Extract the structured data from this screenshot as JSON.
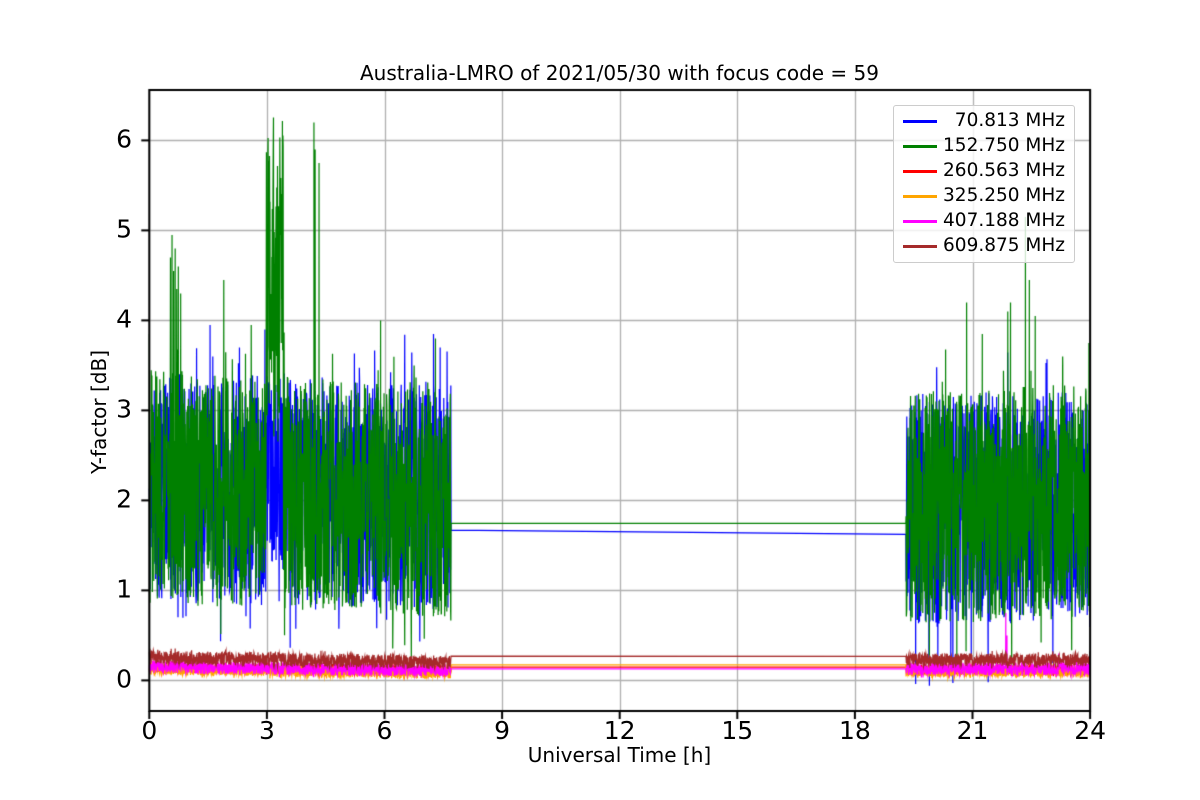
{
  "chart_data": {
    "type": "line",
    "title": "Australia-LMRO of 2021/05/30 with focus code = 59",
    "xlabel": "Universal Time [h]",
    "ylabel": "Y-factor [dB]",
    "xlim": [
      0,
      24
    ],
    "ylim": [
      -0.34,
      6.56
    ],
    "xticks": [
      0,
      3,
      6,
      9,
      12,
      15,
      18,
      21,
      24
    ],
    "yticks": [
      0,
      1,
      2,
      3,
      4,
      5,
      6
    ],
    "grid": true,
    "grid_color": "#b0b0b0",
    "background": "#ffffff",
    "legend_position": "upper right",
    "data_gap": {
      "start_h": 7.7,
      "end_h": 19.3
    },
    "series": [
      {
        "name": " 70.813 MHz",
        "color": "#0000ff",
        "seed": 11,
        "segments": [
          {
            "t0": 0.0,
            "t1": 7.7,
            "c0": 2.15,
            "c1": 2.05,
            "spread": 1.28
          },
          {
            "t0": 19.3,
            "t1": 24.0,
            "c0": 1.9,
            "c1": 1.95,
            "spread": 1.28
          }
        ],
        "events": [
          {
            "t0": 2.98,
            "t1": 3.38,
            "c": 2.35,
            "spread": 1.05
          }
        ],
        "spikes": [
          [
            1.55,
            3.95
          ],
          [
            1.62,
            3.6
          ],
          [
            2.3,
            3.7
          ],
          [
            2.95,
            3.9
          ],
          [
            7.25,
            3.85
          ],
          [
            7.42,
            3.7
          ],
          [
            19.55,
            -0.04
          ],
          [
            19.9,
            -0.06
          ],
          [
            20.5,
            -0.03
          ],
          [
            21.4,
            -0.02
          ]
        ],
        "gap_line": [
          1.67,
          1.623
        ]
      },
      {
        "name": "152.750 MHz",
        "color": "#008000",
        "seed": 22,
        "segments": [
          {
            "t0": 0.0,
            "t1": 7.7,
            "c0": 2.15,
            "c1": 2.0,
            "spread": 1.3
          },
          {
            "t0": 19.3,
            "t1": 24.0,
            "c0": 1.9,
            "c1": 2.0,
            "spread": 1.3
          }
        ],
        "events": [
          {
            "t0": 2.98,
            "t1": 3.42,
            "c": 4.45,
            "spread": 1.8
          }
        ],
        "spikes": [
          [
            0.54,
            4.7
          ],
          [
            0.58,
            4.95
          ],
          [
            0.62,
            4.55
          ],
          [
            0.66,
            4.8
          ],
          [
            0.7,
            4.35
          ],
          [
            0.74,
            4.6
          ],
          [
            0.8,
            4.3
          ],
          [
            1.9,
            4.45
          ],
          [
            2.6,
            3.95
          ],
          [
            4.2,
            6.2
          ],
          [
            4.23,
            5.9
          ],
          [
            4.33,
            5.75
          ],
          [
            5.9,
            4.0
          ],
          [
            7.3,
            3.8
          ],
          [
            19.9,
            0.06
          ],
          [
            20.6,
            0.1
          ],
          [
            20.85,
            4.2
          ],
          [
            21.25,
            3.85
          ],
          [
            21.9,
            4.1
          ],
          [
            21.97,
            4.2
          ],
          [
            22.0,
            0.12
          ],
          [
            22.35,
            5.15
          ],
          [
            22.45,
            4.45
          ],
          [
            22.6,
            4.05
          ],
          [
            23.3,
            3.6
          ],
          [
            23.97,
            3.75
          ]
        ],
        "gap_line": [
          1.745,
          1.745
        ]
      },
      {
        "name": "260.563 MHz",
        "color": "#ff0000",
        "seed": 33,
        "segments": [
          {
            "t0": 0.0,
            "t1": 7.7,
            "c0": 0.14,
            "c1": 0.11,
            "spread": 0.055
          },
          {
            "t0": 19.3,
            "t1": 24.0,
            "c0": 0.12,
            "c1": 0.12,
            "spread": 0.055
          }
        ],
        "events": [],
        "spikes": [],
        "gap_line": [
          0.148,
          0.148
        ]
      },
      {
        "name": "325.250 MHz",
        "color": "#ffa500",
        "seed": 44,
        "segments": [
          {
            "t0": 0.0,
            "t1": 7.7,
            "c0": 0.12,
            "c1": 0.08,
            "spread": 0.06
          },
          {
            "t0": 19.3,
            "t1": 24.0,
            "c0": 0.1,
            "c1": 0.1,
            "spread": 0.06
          }
        ],
        "events": [],
        "spikes": [],
        "gap_line": [
          0.172,
          0.172
        ]
      },
      {
        "name": "407.188 MHz",
        "color": "#ff00ff",
        "seed": 55,
        "segments": [
          {
            "t0": 0.0,
            "t1": 7.7,
            "c0": 0.15,
            "c1": 0.11,
            "spread": 0.07
          },
          {
            "t0": 19.3,
            "t1": 24.0,
            "c0": 0.13,
            "c1": 0.13,
            "spread": 0.07
          }
        ],
        "events": [],
        "spikes": [
          [
            21.85,
            0.75
          ],
          [
            21.88,
            0.5
          ],
          [
            23.2,
            0.3
          ]
        ],
        "gap_line": [
          0.128,
          0.128
        ]
      },
      {
        "name": "609.875 MHz",
        "color": "#a52a2a",
        "seed": 66,
        "segments": [
          {
            "t0": 0.0,
            "t1": 7.7,
            "c0": 0.26,
            "c1": 0.2,
            "spread": 0.075
          },
          {
            "t0": 19.3,
            "t1": 24.0,
            "c0": 0.23,
            "c1": 0.23,
            "spread": 0.07
          }
        ],
        "events": [],
        "spikes": [],
        "gap_line": [
          0.27,
          0.268
        ]
      }
    ]
  }
}
